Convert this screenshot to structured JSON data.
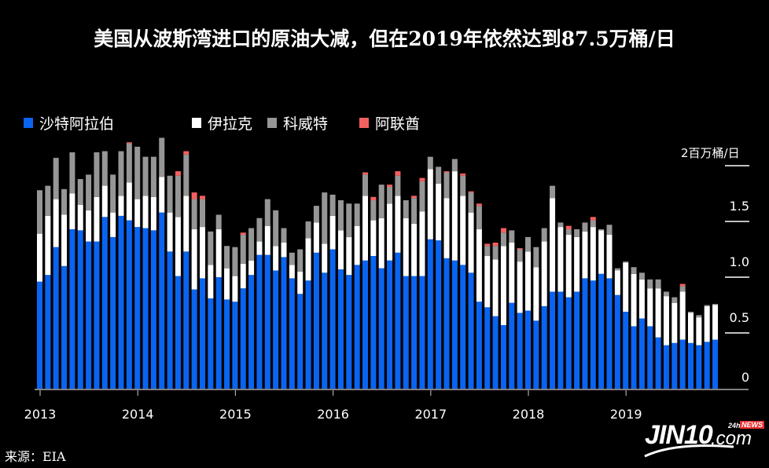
{
  "title": "美国从波斯湾进口的原油大减，但在2019年依然达到87.5万桶/日",
  "source": "来源：EIA",
  "logo": {
    "main": "JIN10",
    "com": ".com",
    "tag24h": "24h",
    "news": "NEWS"
  },
  "chart_data": {
    "type": "bar",
    "stacked": true,
    "title": "美国从波斯湾进口的原油大减，但在2019年依然达到87.5万桶/日",
    "ylabel": "2百万桶/日",
    "xlabel": "",
    "ylim": [
      0,
      2.0
    ],
    "yticks": [
      0,
      0.5,
      1.0,
      1.5,
      2.0
    ],
    "ytick_labels": [
      "0",
      "0.5",
      "1.0",
      "1.5",
      ""
    ],
    "xtick_labels": [
      "2013",
      "2014",
      "2015",
      "2016",
      "2017",
      "2018",
      "2019"
    ],
    "x_frequency": "monthly",
    "x_start": "2013-01",
    "legend_position": "top-left",
    "grid": false,
    "series": [
      {
        "name": "沙特阿拉伯",
        "color": "#0a64f0",
        "values": [
          0.96,
          1.02,
          1.27,
          1.1,
          1.43,
          1.42,
          1.32,
          1.32,
          1.54,
          1.36,
          1.55,
          1.51,
          1.45,
          1.44,
          1.42,
          1.58,
          1.23,
          1.01,
          1.23,
          0.89,
          0.99,
          0.81,
          1.0,
          0.8,
          0.78,
          0.9,
          1.02,
          1.2,
          1.2,
          1.06,
          1.18,
          0.99,
          0.85,
          0.97,
          1.22,
          1.04,
          1.25,
          1.07,
          1.02,
          1.11,
          1.15,
          1.19,
          1.08,
          1.15,
          1.22,
          1.01,
          1.01,
          1.01,
          1.34,
          1.33,
          1.17,
          1.15,
          1.11,
          1.04,
          0.78,
          0.73,
          0.65,
          0.57,
          0.77,
          0.68,
          0.7,
          0.61,
          0.74,
          0.87,
          0.87,
          0.82,
          0.87,
          0.99,
          0.97,
          1.03,
          0.99,
          0.84,
          0.69,
          0.56,
          0.63,
          0.56,
          0.46,
          0.39,
          0.41,
          0.44,
          0.41,
          0.39,
          0.42,
          0.44
        ]
      },
      {
        "name": "伊拉克",
        "color": "#ffffff",
        "values": [
          0.43,
          0.53,
          0.43,
          0.46,
          0.32,
          0.23,
          0.28,
          0.4,
          0.28,
          0.22,
          0.18,
          0.34,
          0.25,
          0.29,
          0.3,
          0.32,
          0.35,
          0.53,
          0.5,
          0.54,
          0.46,
          0.3,
          0.43,
          0.28,
          0.23,
          0.22,
          0.13,
          0.12,
          0.26,
          0.22,
          0.13,
          0.12,
          0.2,
          0.38,
          0.27,
          0.26,
          0.3,
          0.35,
          0.34,
          0.35,
          0.58,
          0.32,
          0.45,
          0.51,
          0.51,
          0.52,
          0.47,
          0.58,
          0.63,
          0.51,
          0.54,
          0.8,
          0.62,
          0.54,
          0.65,
          0.46,
          0.51,
          0.71,
          0.54,
          0.46,
          0.53,
          0.48,
          0.58,
          0.84,
          0.58,
          0.56,
          0.49,
          0.42,
          0.48,
          0.39,
          0.39,
          0.22,
          0.44,
          0.47,
          0.35,
          0.34,
          0.44,
          0.44,
          0.36,
          0.43,
          0.27,
          0.25,
          0.32,
          0.31
        ]
      },
      {
        "name": "科威特",
        "color": "#969696",
        "values": [
          0.39,
          0.27,
          0.37,
          0.23,
          0.37,
          0.23,
          0.32,
          0.4,
          0.31,
          0.34,
          0.4,
          0.35,
          0.47,
          0.35,
          0.36,
          0.35,
          0.33,
          0.37,
          0.37,
          0.27,
          0.25,
          0.3,
          0.13,
          0.2,
          0.26,
          0.26,
          0.29,
          0.21,
          0.24,
          0.32,
          0.13,
          0.11,
          0.2,
          0.15,
          0.15,
          0.46,
          0.19,
          0.27,
          0.3,
          0.2,
          0.19,
          0.18,
          0.3,
          0.15,
          0.18,
          0.16,
          0.23,
          0.27,
          0.11,
          0.15,
          0.23,
          0.11,
          0.18,
          0.18,
          0.21,
          0.09,
          0.12,
          0.12,
          0.11,
          0.11,
          0.13,
          0.18,
          0.12,
          0.11,
          0.04,
          0.05,
          0.07,
          0.08,
          0.06,
          0.01,
          0.09,
          0.02,
          0.01,
          0.06,
          0.06,
          0.08,
          0.08,
          0.04,
          0.05,
          0.05,
          0.01,
          0.02,
          0.01,
          0.01
        ]
      },
      {
        "name": "阿联酋",
        "color": "#f4605f",
        "values": [
          0,
          0,
          0,
          0,
          0,
          0,
          0,
          0,
          0,
          0,
          0,
          0.01,
          0,
          0,
          0,
          0,
          0,
          0.04,
          0.03,
          0.06,
          0.03,
          0,
          0,
          0,
          0,
          0.02,
          0,
          0,
          0,
          0,
          0,
          0,
          0,
          0,
          0,
          0,
          0,
          0,
          0,
          0,
          0.02,
          0.03,
          0,
          0.02,
          0.04,
          0,
          0.02,
          0.03,
          0,
          0,
          0.01,
          0,
          0.02,
          0.01,
          0.02,
          0.02,
          0.03,
          0.04,
          0,
          0.01,
          0,
          0,
          0,
          0,
          0,
          0.03,
          0,
          0,
          0.03,
          0,
          0,
          0,
          0,
          0,
          0,
          0,
          0,
          0,
          0,
          0.02,
          0,
          0,
          0,
          0
        ]
      }
    ]
  }
}
